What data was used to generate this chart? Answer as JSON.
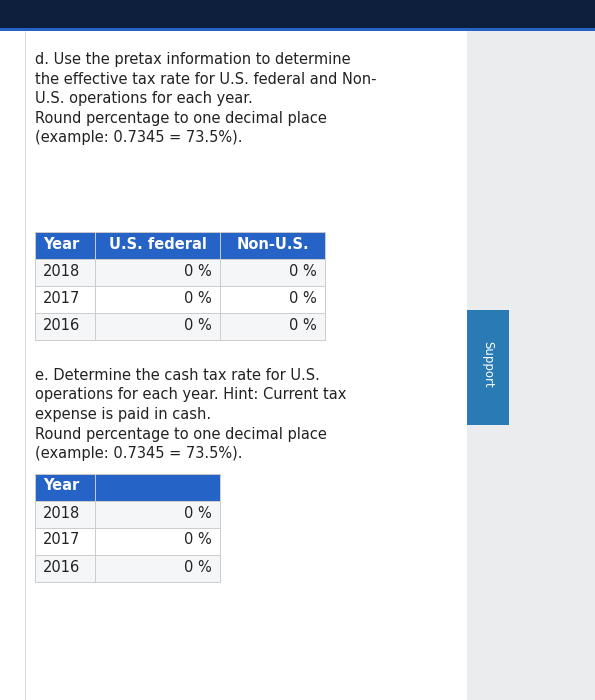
{
  "bg_color": "#eaecee",
  "content_bg": "#ffffff",
  "top_bar_color": "#0d1f3c",
  "header_blue": "#2563c7",
  "header_text_color": "#ffffff",
  "cell_text_color": "#222222",
  "border_color": "#cccccc",
  "row_bg": "#f5f5f5",
  "support_bg": "#2a7ab5",
  "section_d_text_lines": [
    "d. Use the pretax information to determine",
    "the effective tax rate for U.S. federal and Non-",
    "U.S. operations for each year.",
    "Round percentage to one decimal place",
    "(example: 0.7345 = 73.5%)."
  ],
  "table1_headers": [
    "Year",
    "U.S. federal",
    "Non-U.S."
  ],
  "table1_rows": [
    [
      "2018",
      "0 %",
      "0 %"
    ],
    [
      "2017",
      "0 %",
      "0 %"
    ],
    [
      "2016",
      "0 %",
      "0 %"
    ]
  ],
  "section_e_text_lines": [
    "e. Determine the cash tax rate for U.S.",
    "operations for each year. Hint: Current tax",
    "expense is paid in cash.",
    "Round percentage to one decimal place",
    "(example: 0.7345 = 73.5%)."
  ],
  "table2_header": "Year",
  "table2_rows": [
    [
      "2018",
      "0 %"
    ],
    [
      "2017",
      "0 %"
    ],
    [
      "2016",
      "0 %"
    ]
  ],
  "font_size_text": 10.5,
  "font_size_table": 10.5,
  "font_size_header": 10.5
}
